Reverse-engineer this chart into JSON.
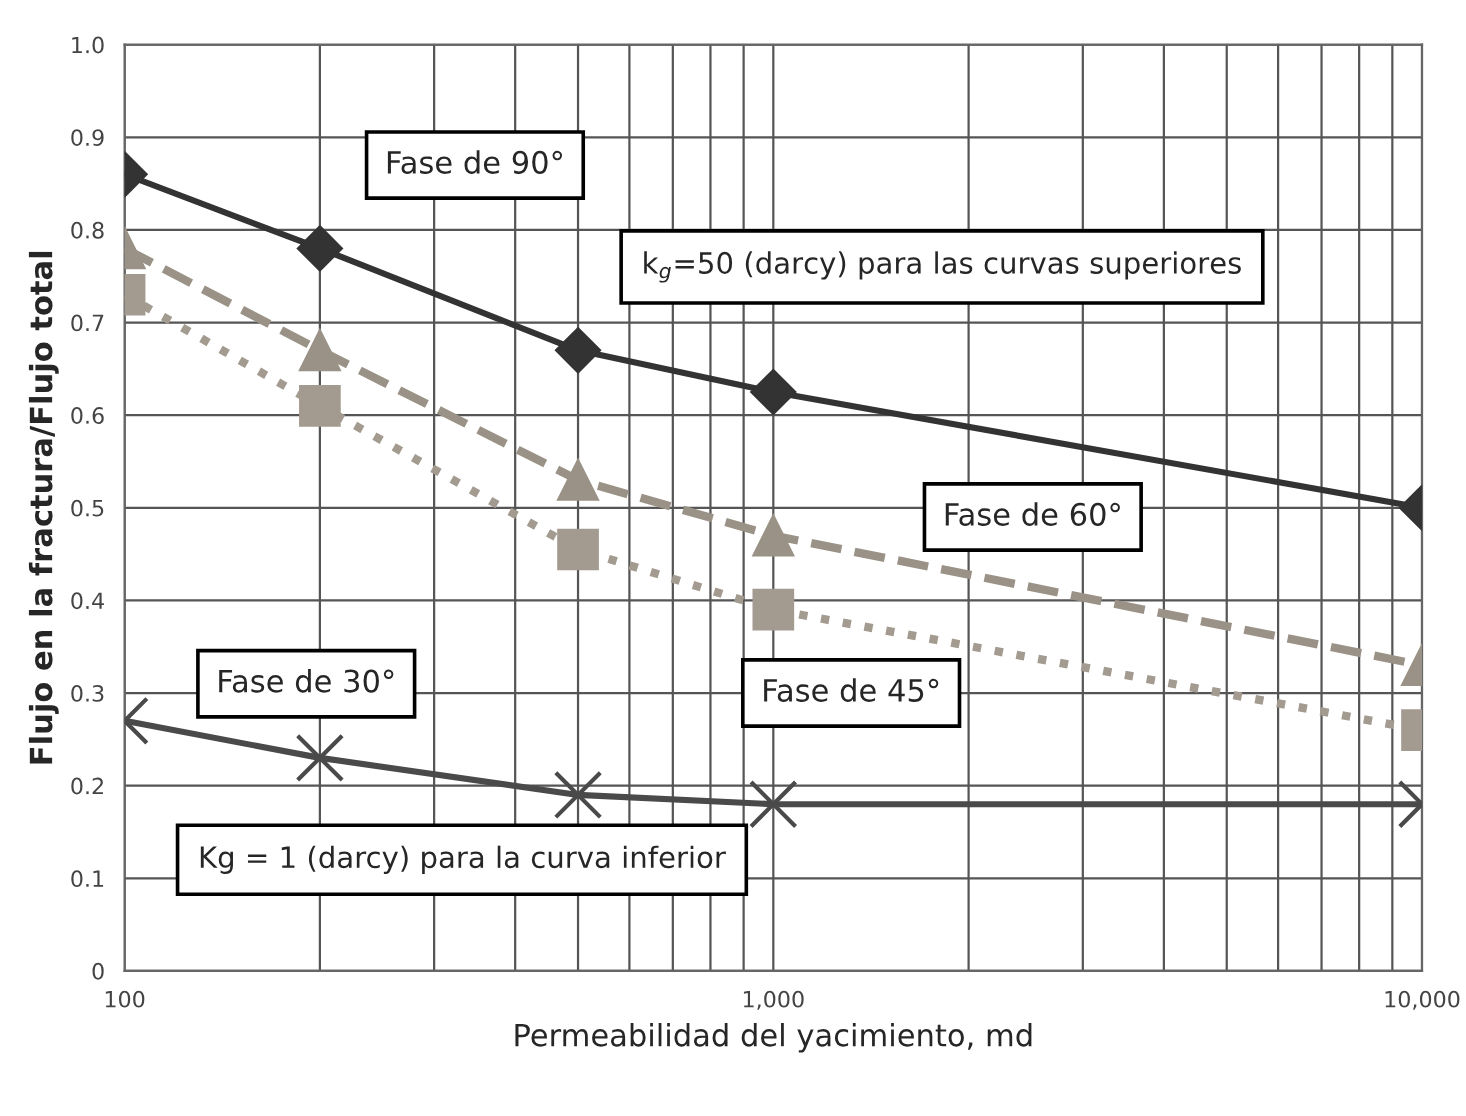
{
  "chart_data": {
    "type": "line",
    "xlabel": "Permeabilidad del yacimiento, md",
    "ylabel": "Flujo en la fractura/Flujo total",
    "x": [
      100,
      200,
      500,
      1000,
      10000
    ],
    "series": [
      {
        "name": "Fase de 90°",
        "color": "#333333",
        "marker": "diamond",
        "line_style": "solid",
        "values": [
          0.86,
          0.78,
          0.67,
          0.625,
          0.5
        ]
      },
      {
        "name": "Fase de 60°",
        "color": "#9a9286",
        "marker": "triangle",
        "line_style": "dashed",
        "values": [
          0.78,
          0.67,
          0.53,
          0.47,
          0.33
        ]
      },
      {
        "name": "Fase de 45°",
        "color": "#a39a90",
        "marker": "square",
        "line_style": "dotted",
        "values": [
          0.73,
          0.61,
          0.455,
          0.39,
          0.26
        ]
      },
      {
        "name": "Fase de 30°",
        "color": "#4a4a4a",
        "marker": "cross",
        "line_style": "solid",
        "values": [
          0.27,
          0.23,
          0.19,
          0.18,
          0.18
        ]
      }
    ],
    "annotations": [
      "k$_{g}$=50 (darcy) para las curvas superiores",
      "Kg = 1 (darcy) para la curva inferior"
    ],
    "log": "x",
    "xlim": [
      100,
      10000
    ],
    "xticks": [
      100,
      {
        "value": 1000,
        "label": "1,000"
      },
      {
        "value": 10000,
        "label": "10,000"
      }
    ],
    "ylim": [
      0,
      1
    ],
    "yticks": [
      0,
      0.1,
      0.2,
      0.3,
      0.4,
      0.5,
      0.6,
      0.7,
      0.8,
      0.9,
      {
        "value": 1,
        "label": "1.0"
      }
    ],
    "grid": true,
    "legend": false
  }
}
